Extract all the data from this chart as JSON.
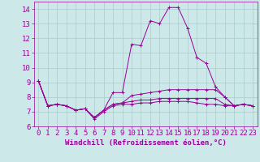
{
  "background_color": "#cce8e8",
  "grid_color": "#aacccc",
  "line_color": "#990099",
  "xlabel": "Windchill (Refroidissement éolien,°C)",
  "xlim": [
    -0.5,
    23.5
  ],
  "ylim": [
    6,
    14.5
  ],
  "yticks": [
    6,
    7,
    8,
    9,
    10,
    11,
    12,
    13,
    14
  ],
  "xticks": [
    0,
    1,
    2,
    3,
    4,
    5,
    6,
    7,
    8,
    9,
    10,
    11,
    12,
    13,
    14,
    15,
    16,
    17,
    18,
    19,
    20,
    21,
    22,
    23
  ],
  "lines": [
    [
      9.1,
      7.4,
      7.5,
      7.4,
      7.1,
      7.2,
      6.6,
      7.1,
      8.3,
      8.3,
      11.6,
      11.5,
      13.2,
      13.0,
      14.1,
      14.1,
      12.7,
      10.7,
      10.3,
      8.7,
      8.0,
      7.4,
      7.5,
      7.4
    ],
    [
      9.1,
      7.4,
      7.5,
      7.4,
      7.1,
      7.2,
      6.6,
      7.1,
      7.5,
      7.6,
      8.1,
      8.2,
      8.3,
      8.4,
      8.5,
      8.5,
      8.5,
      8.5,
      8.5,
      8.5,
      8.0,
      7.4,
      7.5,
      7.4
    ],
    [
      9.1,
      7.4,
      7.5,
      7.4,
      7.1,
      7.2,
      6.6,
      7.1,
      7.5,
      7.6,
      7.7,
      7.8,
      7.8,
      7.9,
      7.9,
      7.9,
      7.9,
      7.9,
      7.9,
      7.9,
      7.5,
      7.4,
      7.5,
      7.4
    ],
    [
      9.1,
      7.4,
      7.5,
      7.4,
      7.1,
      7.2,
      6.5,
      7.0,
      7.4,
      7.5,
      7.5,
      7.6,
      7.6,
      7.7,
      7.7,
      7.7,
      7.7,
      7.6,
      7.5,
      7.5,
      7.4,
      7.4,
      7.5,
      7.4
    ]
  ],
  "fontsize_xlabel": 6.5,
  "fontsize_ticks": 6.5
}
